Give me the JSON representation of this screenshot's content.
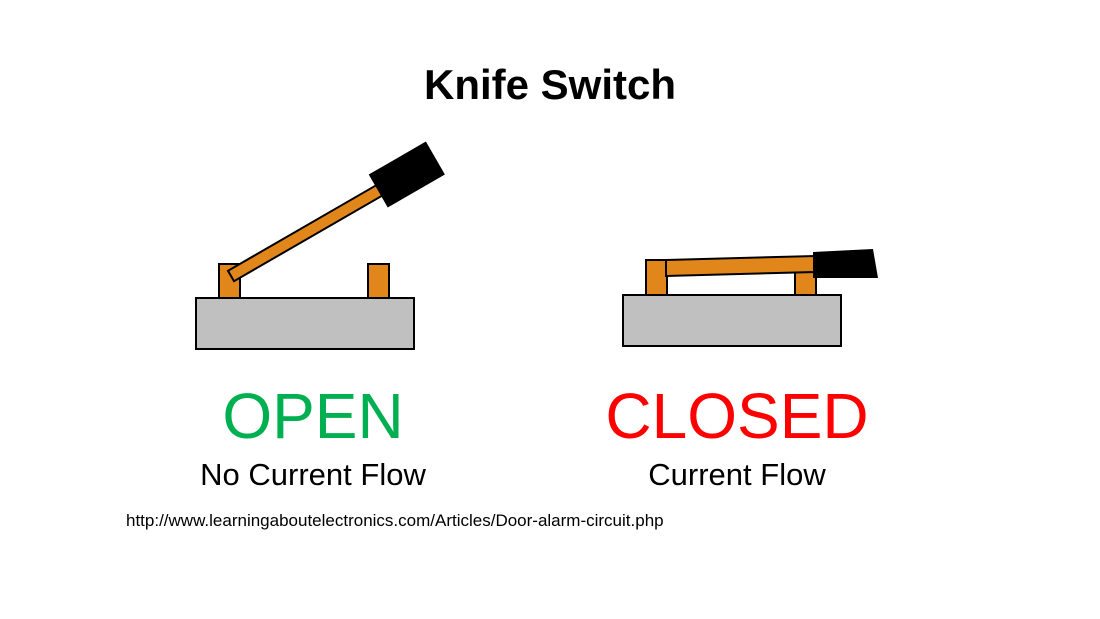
{
  "title": "Knife Switch",
  "open": {
    "state": "OPEN",
    "description": "No Current Flow",
    "color": "#00b050"
  },
  "closed": {
    "state": "CLOSED",
    "description": "Current Flow",
    "color": "#ff0000"
  },
  "source": "http://www.learningaboutelectronics.com/Articles/Door-alarm-circuit.php",
  "colors": {
    "base": "#c0c0c0",
    "lever": "#e0861a",
    "handle": "#000000",
    "outline": "#000000"
  }
}
